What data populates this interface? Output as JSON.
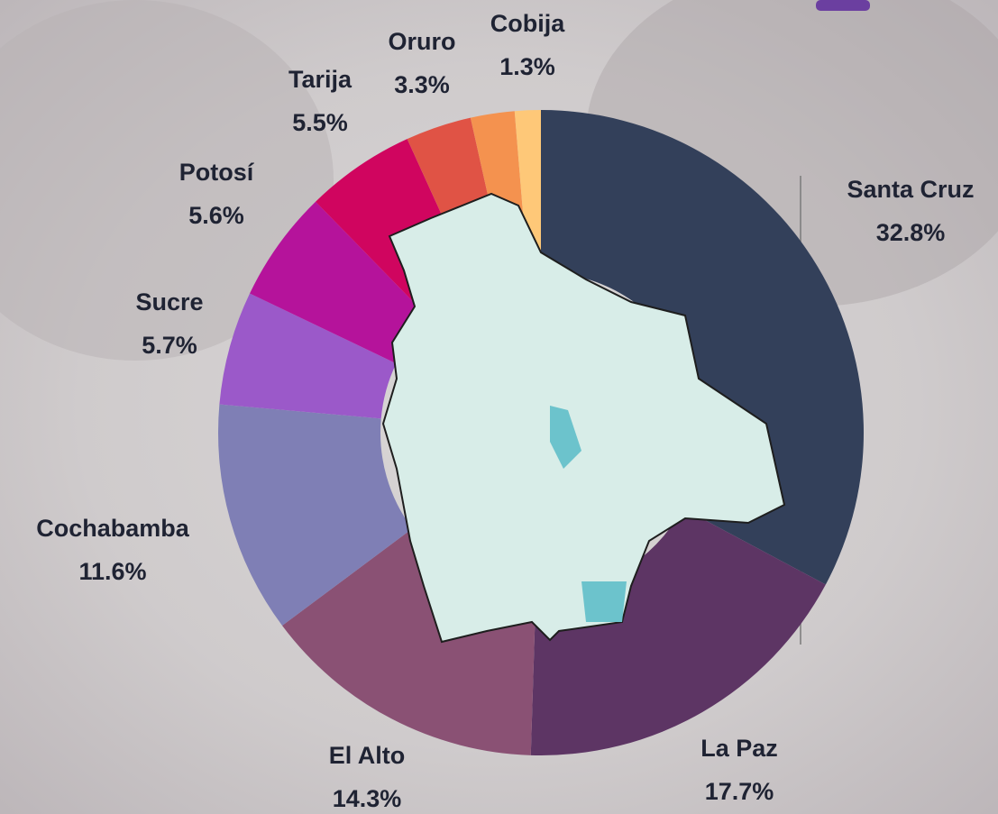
{
  "chart_data": {
    "type": "donut",
    "categories": [
      "Santa Cruz",
      "La Paz",
      "El Alto",
      "Cochabamba",
      "Sucre",
      "Potosí",
      "Tarija",
      "Oruro",
      null,
      "Cobija"
    ],
    "values": [
      32.8,
      17.7,
      14.3,
      11.6,
      5.7,
      5.6,
      5.5,
      3.3,
      2.2,
      1.3
    ],
    "value_labels": [
      "32.8%",
      "17.7%",
      "14.3%",
      "11.6%",
      "5.7%",
      "5.6%",
      "5.5%",
      "3.3%",
      null,
      "1.3%"
    ],
    "colors": [
      "#33405a",
      "#5d3564",
      "#8a5174",
      "#7f7fb5",
      "#9b59c9",
      "#b5139b",
      "#d0055f",
      "#e05345",
      "#f4924f",
      "#fec878"
    ]
  }
}
